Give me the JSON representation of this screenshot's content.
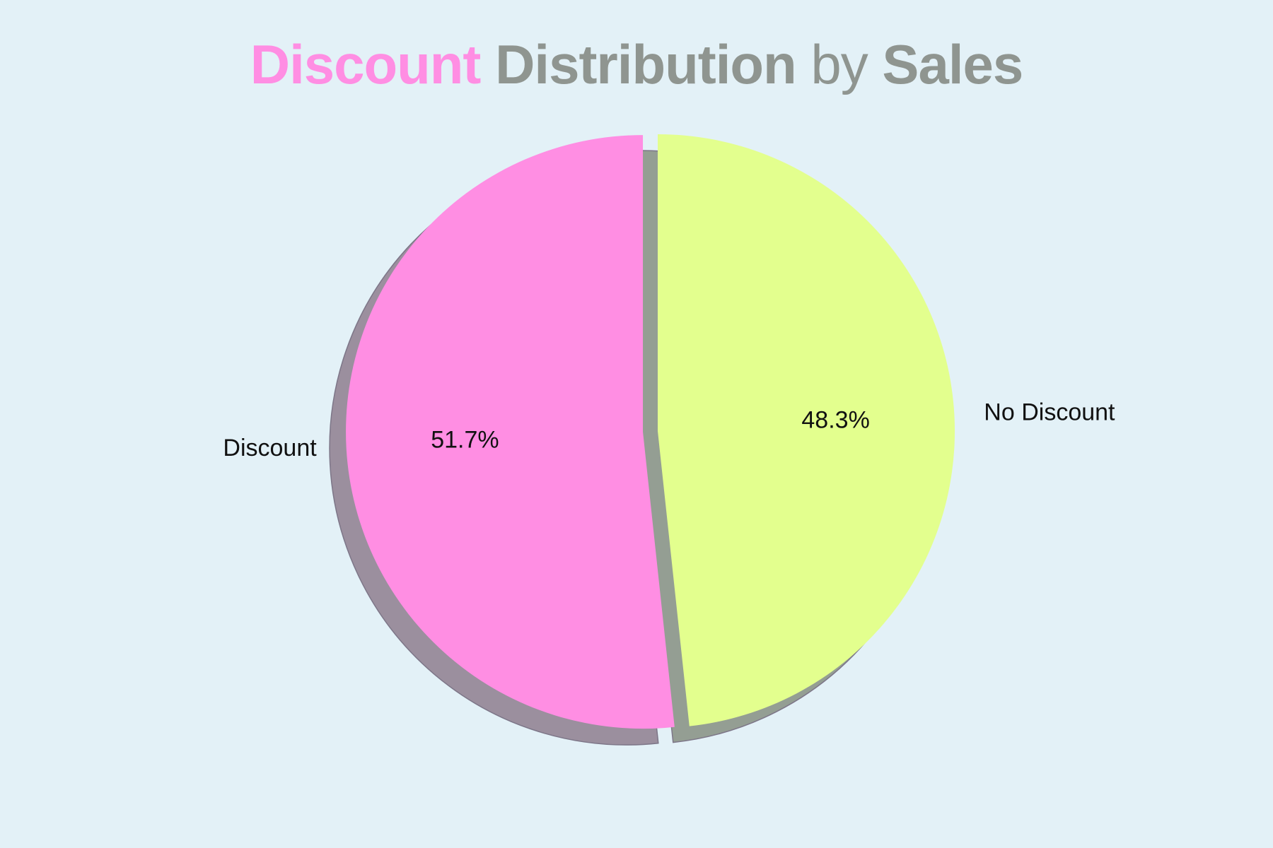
{
  "title": {
    "part1": "Discount",
    "part2": "Distribution",
    "part3": "by",
    "part4": "Sales"
  },
  "colors": {
    "background": "#e3f1f7",
    "title_accent": "#ff8ee3",
    "title_gray": "#8f9590",
    "discount": "#ff8ee3",
    "no_discount": "#e3ff8e",
    "discount_shadow": "#9b8f9e",
    "no_discount_shadow": "#949e93"
  },
  "chart_data": {
    "type": "pie",
    "title": "Discount Distribution by Sales",
    "labels": [
      "Discount",
      "No Discount"
    ],
    "values": [
      51.7,
      48.3
    ],
    "autopct_labels": [
      "51.7%",
      "48.3%"
    ],
    "start_angle": 90,
    "explode": "Discount slice exploded",
    "shadow": true
  }
}
